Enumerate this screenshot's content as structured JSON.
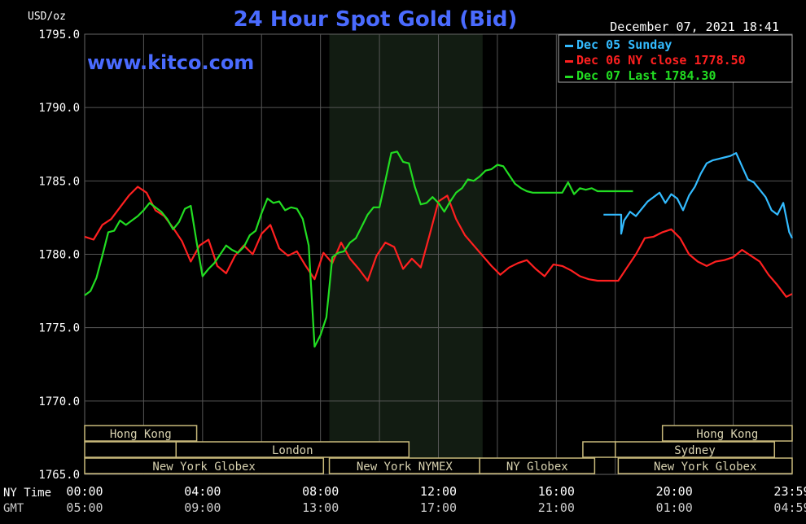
{
  "header": {
    "unit": "USD/oz",
    "title": "24 Hour Spot Gold (Bid)",
    "timestamp": "December 07, 2021 18:41",
    "website": "www.kitco.com"
  },
  "legend": [
    {
      "label": "Dec 05 Sunday",
      "color": "#33bbff"
    },
    {
      "label": "Dec 06 NY close 1778.50",
      "color": "#ff2020"
    },
    {
      "label": "Dec 07 Last 1784.30",
      "color": "#22dd22"
    }
  ],
  "axis_labels": {
    "ny_time": "NY Time",
    "gmt": "GMT"
  },
  "sessions": {
    "row1": [
      {
        "label": "Hong Kong",
        "start": 0,
        "end": 3.8
      },
      {
        "label": "Hong Kong",
        "start": 19.6,
        "end": 24
      }
    ],
    "row2": [
      {
        "label": "",
        "start": 0,
        "end": 3.1
      },
      {
        "label": "London",
        "start": 3.1,
        "end": 11
      },
      {
        "label": "",
        "start": 16.9,
        "end": 18
      },
      {
        "label": "Sydney",
        "start": 18,
        "end": 23.4
      }
    ],
    "row3": [
      {
        "label": "New York Globex",
        "start": 0,
        "end": 8.1
      },
      {
        "label": "New York NYMEX",
        "start": 8.3,
        "end": 13.4
      },
      {
        "label": "NY Globex",
        "start": 13.4,
        "end": 17.3
      },
      {
        "label": "New York Globex",
        "start": 18.1,
        "end": 24
      }
    ]
  },
  "chart_data": {
    "type": "line",
    "title": "24 Hour Spot Gold (Bid)",
    "ylabel": "USD/oz",
    "ylim": [
      1765,
      1795
    ],
    "xlim": [
      0,
      24
    ],
    "yticks": [
      "1765.0",
      "1770.0",
      "1775.0",
      "1780.0",
      "1785.0",
      "1790.0",
      "1795.0"
    ],
    "xticks": [
      {
        "ny": "00:00",
        "gmt": "05:00",
        "hour": 0
      },
      {
        "ny": "04:00",
        "gmt": "09:00",
        "hour": 4
      },
      {
        "ny": "08:00",
        "gmt": "13:00",
        "hour": 8
      },
      {
        "ny": "12:00",
        "gmt": "17:00",
        "hour": 12
      },
      {
        "ny": "16:00",
        "gmt": "21:00",
        "hour": 16
      },
      {
        "ny": "20:00",
        "gmt": "01:00",
        "hour": 20
      },
      {
        "ny": "23:59",
        "gmt": "04:59",
        "hour": 24
      }
    ],
    "shaded_range": [
      8.3,
      13.5
    ],
    "grid": true,
    "legend_position": "top-right",
    "series": [
      {
        "name": "Dec 05 Sunday",
        "color": "#33bbff",
        "x": [
          17.6,
          18.2,
          18.2,
          18.3,
          18.5,
          18.7,
          18.9,
          19.1,
          19.3,
          19.5,
          19.7,
          19.9,
          20.1,
          20.3,
          20.5,
          20.7,
          20.9,
          21.1,
          21.3,
          21.5,
          21.7,
          21.9,
          22.1,
          22.3,
          22.5,
          22.7,
          22.9,
          23.1,
          23.3,
          23.5,
          23.7,
          23.9,
          24.0
        ],
        "y": [
          1782.7,
          1782.7,
          1781.4,
          1782.3,
          1782.9,
          1782.6,
          1783.1,
          1783.6,
          1783.9,
          1784.2,
          1783.5,
          1784.1,
          1783.8,
          1783.0,
          1784.0,
          1784.6,
          1785.5,
          1786.2,
          1786.4,
          1786.5,
          1786.6,
          1786.7,
          1786.9,
          1786.0,
          1785.1,
          1784.9,
          1784.4,
          1783.9,
          1783.0,
          1782.7,
          1783.5,
          1781.5,
          1781.1
        ]
      },
      {
        "name": "Dec 06 NY close 1778.50",
        "color": "#ff2020",
        "x": [
          0.0,
          0.3,
          0.6,
          0.9,
          1.2,
          1.5,
          1.8,
          2.1,
          2.4,
          2.7,
          3.0,
          3.3,
          3.6,
          3.9,
          4.2,
          4.5,
          4.8,
          5.1,
          5.4,
          5.7,
          6.0,
          6.3,
          6.6,
          6.9,
          7.2,
          7.5,
          7.8,
          8.1,
          8.4,
          8.7,
          9.0,
          9.3,
          9.6,
          9.9,
          10.2,
          10.5,
          10.8,
          11.1,
          11.4,
          11.7,
          12.0,
          12.3,
          12.6,
          12.9,
          13.2,
          13.5,
          13.8,
          14.1,
          14.4,
          14.7,
          15.0,
          15.3,
          15.6,
          15.9,
          16.2,
          16.5,
          16.8,
          17.1,
          17.4,
          17.7,
          18.0,
          18.1,
          18.4,
          18.7,
          19.0,
          19.3,
          19.6,
          19.9,
          20.2,
          20.5,
          20.8,
          21.1,
          21.4,
          21.7,
          22.0,
          22.3,
          22.6,
          22.9,
          23.2,
          23.5,
          23.8,
          24.0
        ],
        "y": [
          1781.2,
          1781.0,
          1782.0,
          1782.4,
          1783.2,
          1784.0,
          1784.6,
          1784.2,
          1783.0,
          1782.6,
          1781.8,
          1780.9,
          1779.5,
          1780.6,
          1781.0,
          1779.2,
          1778.7,
          1779.9,
          1780.6,
          1780.0,
          1781.4,
          1782.0,
          1780.4,
          1779.9,
          1780.2,
          1779.2,
          1778.3,
          1780.1,
          1779.4,
          1780.8,
          1779.7,
          1779.0,
          1778.2,
          1779.9,
          1780.8,
          1780.5,
          1779.0,
          1779.7,
          1779.1,
          1781.3,
          1783.6,
          1784.0,
          1782.4,
          1781.3,
          1780.6,
          1779.9,
          1779.2,
          1778.6,
          1779.1,
          1779.4,
          1779.6,
          1779.0,
          1778.5,
          1779.3,
          1779.2,
          1778.9,
          1778.5,
          1778.3,
          1778.2,
          1778.2,
          1778.2,
          1778.2,
          1779.1,
          1780.0,
          1781.1,
          1781.2,
          1781.5,
          1781.7,
          1781.1,
          1780.0,
          1779.5,
          1779.2,
          1779.5,
          1779.6,
          1779.8,
          1780.3,
          1779.9,
          1779.5,
          1778.6,
          1777.9,
          1777.1,
          1777.3
        ]
      },
      {
        "name": "Dec 07 Last 1784.30",
        "color": "#22dd22",
        "x": [
          0.0,
          0.2,
          0.4,
          0.6,
          0.8,
          1.0,
          1.2,
          1.4,
          1.6,
          1.8,
          2.0,
          2.2,
          2.4,
          2.6,
          2.8,
          3.0,
          3.2,
          3.4,
          3.6,
          3.8,
          4.0,
          4.2,
          4.4,
          4.6,
          4.8,
          5.0,
          5.2,
          5.4,
          5.6,
          5.8,
          6.0,
          6.2,
          6.4,
          6.6,
          6.8,
          7.0,
          7.2,
          7.4,
          7.6,
          7.8,
          8.0,
          8.2,
          8.4,
          8.6,
          8.8,
          9.0,
          9.2,
          9.4,
          9.6,
          9.8,
          10.0,
          10.2,
          10.4,
          10.6,
          10.8,
          11.0,
          11.2,
          11.4,
          11.6,
          11.8,
          12.0,
          12.2,
          12.4,
          12.6,
          12.8,
          13.0,
          13.2,
          13.4,
          13.6,
          13.8,
          14.0,
          14.2,
          14.4,
          14.6,
          14.8,
          15.0,
          15.2,
          15.4,
          15.6,
          15.8,
          16.0,
          16.2,
          16.4,
          16.6,
          16.8,
          17.0,
          17.2,
          17.4,
          17.6,
          17.8,
          18.0,
          18.2,
          18.4,
          18.6
        ],
        "y": [
          1777.2,
          1777.5,
          1778.4,
          1779.9,
          1781.5,
          1781.6,
          1782.3,
          1782.0,
          1782.3,
          1782.6,
          1783.0,
          1783.5,
          1783.2,
          1782.9,
          1782.4,
          1781.7,
          1782.2,
          1783.1,
          1783.3,
          1780.8,
          1778.5,
          1779.0,
          1779.4,
          1780.0,
          1780.6,
          1780.3,
          1780.1,
          1780.5,
          1781.3,
          1781.6,
          1782.8,
          1783.8,
          1783.5,
          1783.6,
          1783.0,
          1783.2,
          1783.1,
          1782.4,
          1780.6,
          1773.7,
          1774.5,
          1775.7,
          1779.8,
          1780.1,
          1780.2,
          1780.8,
          1781.1,
          1781.9,
          1782.7,
          1783.2,
          1783.2,
          1785.0,
          1786.9,
          1787.0,
          1786.3,
          1786.2,
          1784.6,
          1783.4,
          1783.5,
          1783.9,
          1783.5,
          1782.9,
          1783.6,
          1784.2,
          1784.5,
          1785.1,
          1785.0,
          1785.3,
          1785.7,
          1785.8,
          1786.1,
          1786.0,
          1785.4,
          1784.8,
          1784.5,
          1784.3,
          1784.2,
          1784.2,
          1784.2,
          1784.2,
          1784.2,
          1784.2,
          1784.9,
          1784.1,
          1784.5,
          1784.4,
          1784.5,
          1784.3,
          1784.3,
          1784.3,
          1784.3,
          1784.3,
          1784.3,
          1784.3
        ]
      }
    ]
  }
}
